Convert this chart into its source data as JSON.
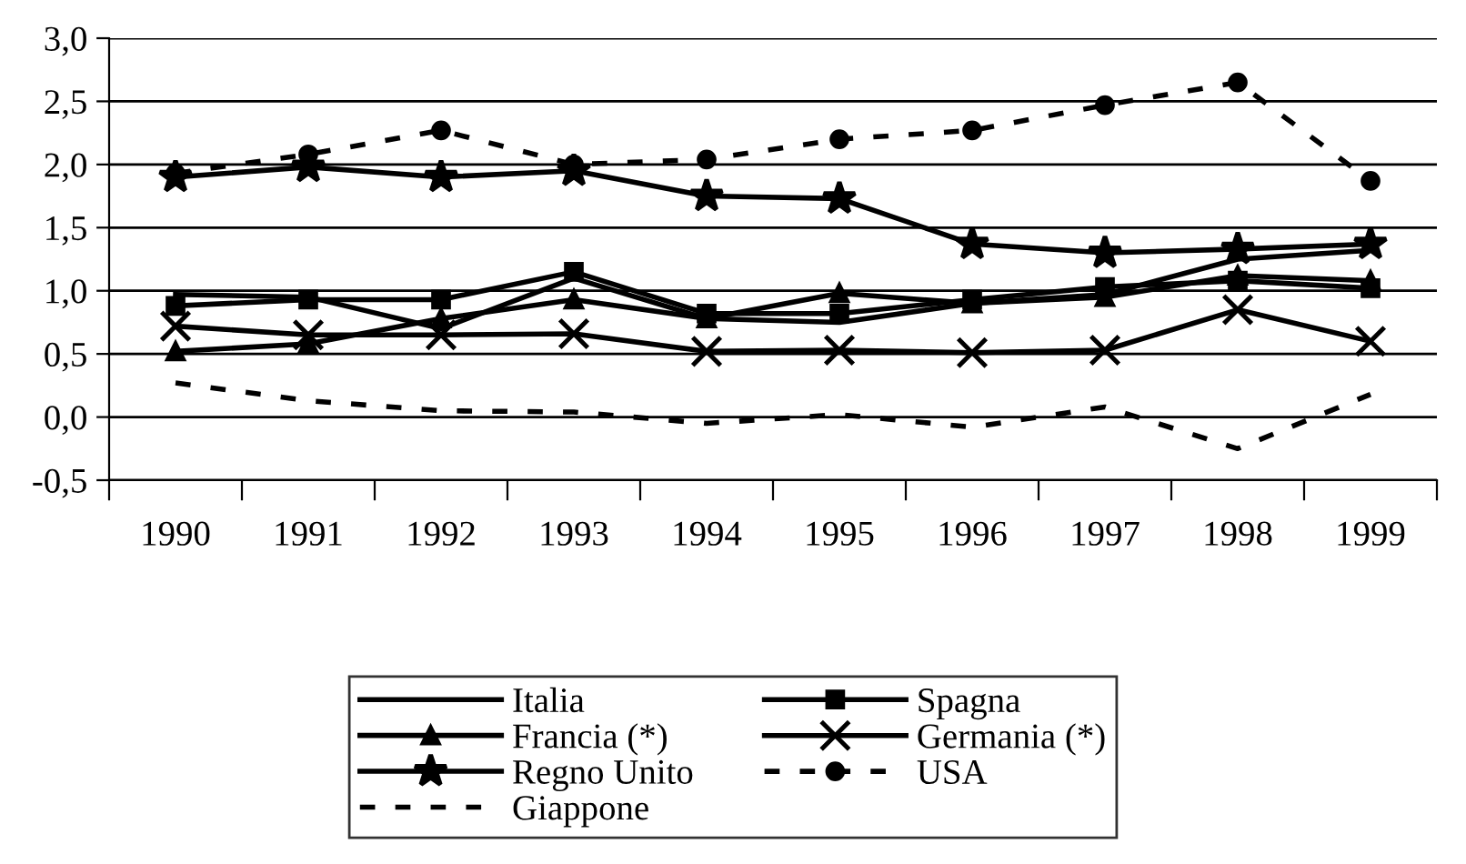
{
  "chart_data": {
    "type": "line",
    "categories": [
      "1990",
      "1991",
      "1992",
      "1993",
      "1994",
      "1995",
      "1996",
      "1997",
      "1998",
      "1999"
    ],
    "ylim": [
      -0.5,
      3.0
    ],
    "yticks": [
      {
        "value": -0.5,
        "label": "-0,5"
      },
      {
        "value": 0,
        "label": "0,0"
      },
      {
        "value": 0.5,
        "label": "0,5"
      },
      {
        "value": 1.0,
        "label": "1,0"
      },
      {
        "value": 1.5,
        "label": "1,5"
      },
      {
        "value": 2.0,
        "label": "2,0"
      },
      {
        "value": 2.5,
        "label": "2,5"
      },
      {
        "value": 3.0,
        "label": "3,0"
      }
    ],
    "grid": "y",
    "legend": "bottom",
    "series": [
      {
        "name": "Italia",
        "color": "#000000",
        "marker": "none",
        "line_style": "solid",
        "values": [
          0.97,
          0.95,
          0.7,
          1.1,
          0.78,
          0.75,
          0.9,
          0.97,
          1.25,
          1.32
        ]
      },
      {
        "name": "Spagna",
        "color": "#000000",
        "marker": "square",
        "line_style": "solid",
        "values": [
          0.88,
          0.93,
          0.93,
          1.15,
          0.82,
          0.82,
          0.93,
          1.03,
          1.08,
          1.02
        ]
      },
      {
        "name": "Francia (*)",
        "color": "#000000",
        "marker": "triangle",
        "line_style": "solid",
        "values": [
          0.52,
          0.58,
          0.78,
          0.93,
          0.78,
          0.98,
          0.9,
          0.95,
          1.12,
          1.08
        ]
      },
      {
        "name": "Germania (*)",
        "color": "#000000",
        "marker": "cross",
        "line_style": "solid",
        "values": [
          0.72,
          0.65,
          0.65,
          0.66,
          0.52,
          0.53,
          0.51,
          0.53,
          0.85,
          0.6
        ]
      },
      {
        "name": "Regno Unito",
        "color": "#000000",
        "marker": "star",
        "line_style": "solid",
        "values": [
          1.9,
          1.98,
          1.9,
          1.95,
          1.75,
          1.73,
          1.37,
          1.3,
          1.33,
          1.37
        ]
      },
      {
        "name": "USA",
        "color": "#000000",
        "marker": "circle",
        "line_style": "dashed",
        "values": [
          1.93,
          2.08,
          2.27,
          2.0,
          2.04,
          2.2,
          2.27,
          2.47,
          2.65,
          1.87
        ]
      },
      {
        "name": "Giappone",
        "color": "#000000",
        "marker": "none",
        "line_style": "dashed",
        "values": [
          0.27,
          0.13,
          0.05,
          0.04,
          -0.05,
          0.02,
          -0.08,
          0.08,
          -0.25,
          0.18
        ]
      }
    ]
  }
}
